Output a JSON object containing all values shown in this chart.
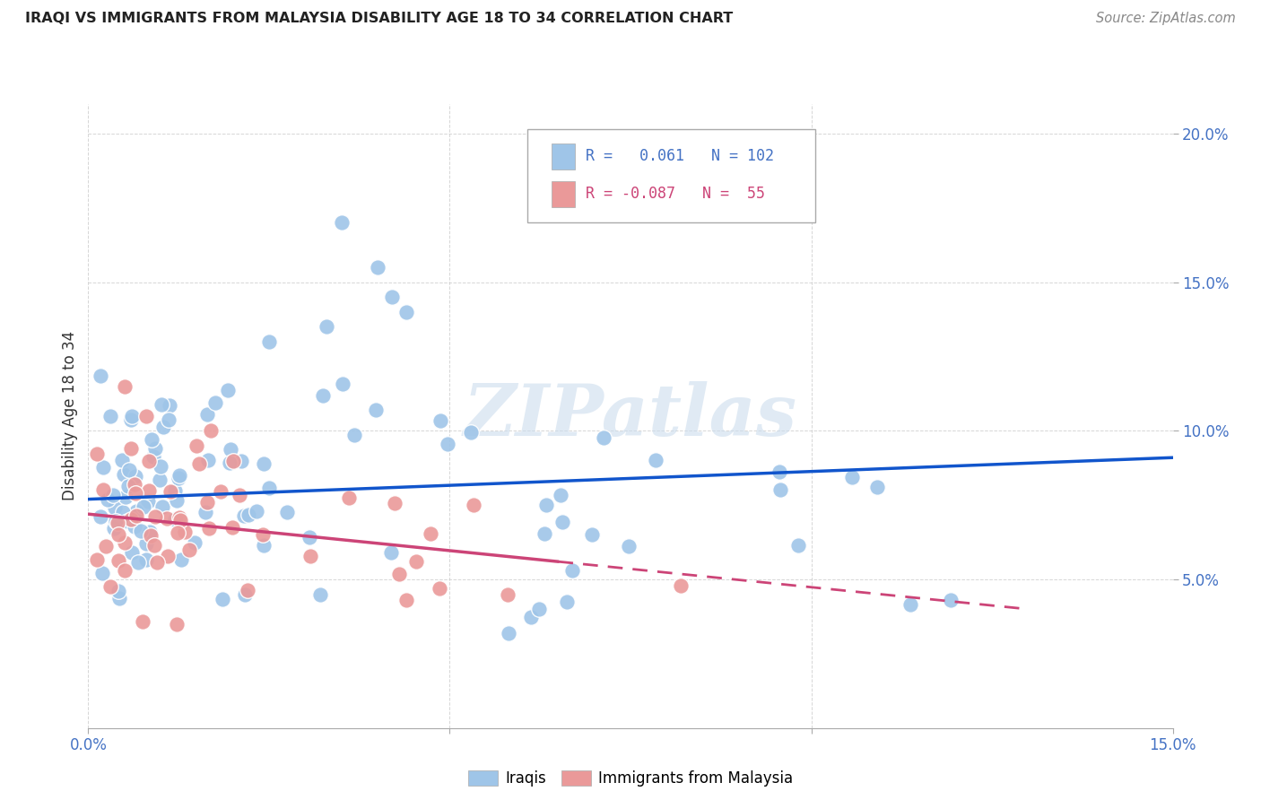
{
  "title": "IRAQI VS IMMIGRANTS FROM MALAYSIA DISABILITY AGE 18 TO 34 CORRELATION CHART",
  "source": "Source: ZipAtlas.com",
  "ylabel_label": "Disability Age 18 to 34",
  "x_min": 0.0,
  "x_max": 0.15,
  "y_min": 0.0,
  "y_max": 0.21,
  "iraqis_color": "#9fc5e8",
  "malaysia_color": "#ea9999",
  "iraqis_line_color": "#1155cc",
  "malaysia_line_color": "#cc4477",
  "watermark_text": "ZIPatlas",
  "legend_r1_val": "0.061",
  "legend_n1_val": "102",
  "legend_r2_val": "-0.087",
  "legend_n2_val": "55",
  "iraqis_label": "Iraqis",
  "malaysia_label": "Immigrants from Malaysia"
}
